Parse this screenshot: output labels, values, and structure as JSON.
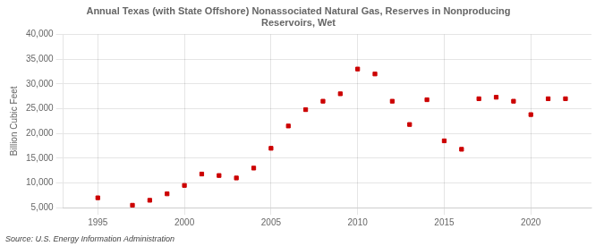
{
  "chart_data": {
    "type": "scatter",
    "title": "Annual Texas (with State Offshore) Nonassociated Natural Gas, Reserves in Nonproducing\nReservoirs, Wet",
    "ylabel": "Billion Cubic Feet",
    "source": "Source: U.S. Energy Information Administration",
    "x": [
      1995,
      1997,
      1998,
      1999,
      2000,
      2001,
      2002,
      2003,
      2004,
      2005,
      2006,
      2007,
      2008,
      2009,
      2010,
      2011,
      2012,
      2013,
      2014,
      2015,
      2016,
      2017,
      2018,
      2019,
      2020,
      2021,
      2022
    ],
    "values": [
      7000,
      5500,
      6500,
      7800,
      9500,
      11800,
      11500,
      11000,
      13000,
      17000,
      21500,
      24800,
      26500,
      28000,
      33000,
      32000,
      26500,
      21800,
      26800,
      18500,
      16800,
      27000,
      27300,
      26500,
      23800,
      27000,
      27000
    ],
    "color": "#cc0000",
    "marker": "square",
    "xlim": [
      1993,
      2023.5
    ],
    "xticks": [
      1995,
      2000,
      2005,
      2010,
      2015,
      2020
    ],
    "ylim": [
      5000,
      40000
    ],
    "yticks": [
      {
        "value": 5000,
        "label": "5,000"
      },
      {
        "value": 10000,
        "label": "10,000"
      },
      {
        "value": 15000,
        "label": "15,000"
      },
      {
        "value": 20000,
        "label": "20,000"
      },
      {
        "value": 25000,
        "label": "25,000"
      },
      {
        "value": 30000,
        "label": "30,000"
      },
      {
        "value": 35000,
        "label": "35,000"
      },
      {
        "value": 40000,
        "label": "40,000"
      }
    ],
    "grid": true
  }
}
